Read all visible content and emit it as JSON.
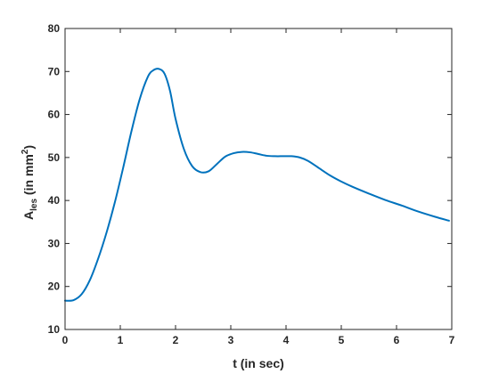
{
  "chart_data": {
    "type": "line",
    "title": "",
    "xlabel": "t (in sec)",
    "ylabel": {
      "base": "A",
      "subscript": "les",
      "text": " (in mm",
      "superscript": "2",
      "close": ")"
    },
    "xlim": [
      0,
      7
    ],
    "ylim": [
      10,
      80
    ],
    "xticks": [
      0,
      1,
      2,
      3,
      4,
      5,
      6,
      7
    ],
    "yticks": [
      10,
      20,
      30,
      40,
      50,
      60,
      70,
      80
    ],
    "grid": false,
    "box": true,
    "line_color": "#0072BD",
    "series": [
      {
        "x": [
          0,
          0.15,
          0.3,
          0.45,
          0.6,
          0.75,
          0.9,
          1.05,
          1.2,
          1.35,
          1.5,
          1.6,
          1.7,
          1.8,
          1.9,
          2.0,
          2.15,
          2.3,
          2.45,
          2.6,
          2.75,
          2.9,
          3.05,
          3.2,
          3.35,
          3.5,
          3.65,
          3.8,
          3.95,
          4.1,
          4.25,
          4.4,
          4.6,
          4.8,
          5.0,
          5.2,
          5.5,
          5.8,
          6.1,
          6.4,
          6.7,
          6.95
        ],
        "y": [
          16.7,
          16.8,
          18.2,
          21.5,
          26.5,
          32.5,
          39.5,
          47.5,
          56.0,
          63.5,
          68.8,
          70.3,
          70.6,
          69.5,
          65.5,
          59.0,
          52.0,
          48.0,
          46.6,
          46.8,
          48.5,
          50.2,
          51.0,
          51.3,
          51.2,
          50.8,
          50.4,
          50.3,
          50.3,
          50.3,
          50.0,
          49.2,
          47.5,
          45.8,
          44.4,
          43.2,
          41.6,
          40.1,
          38.8,
          37.4,
          36.2,
          35.3
        ]
      }
    ]
  }
}
